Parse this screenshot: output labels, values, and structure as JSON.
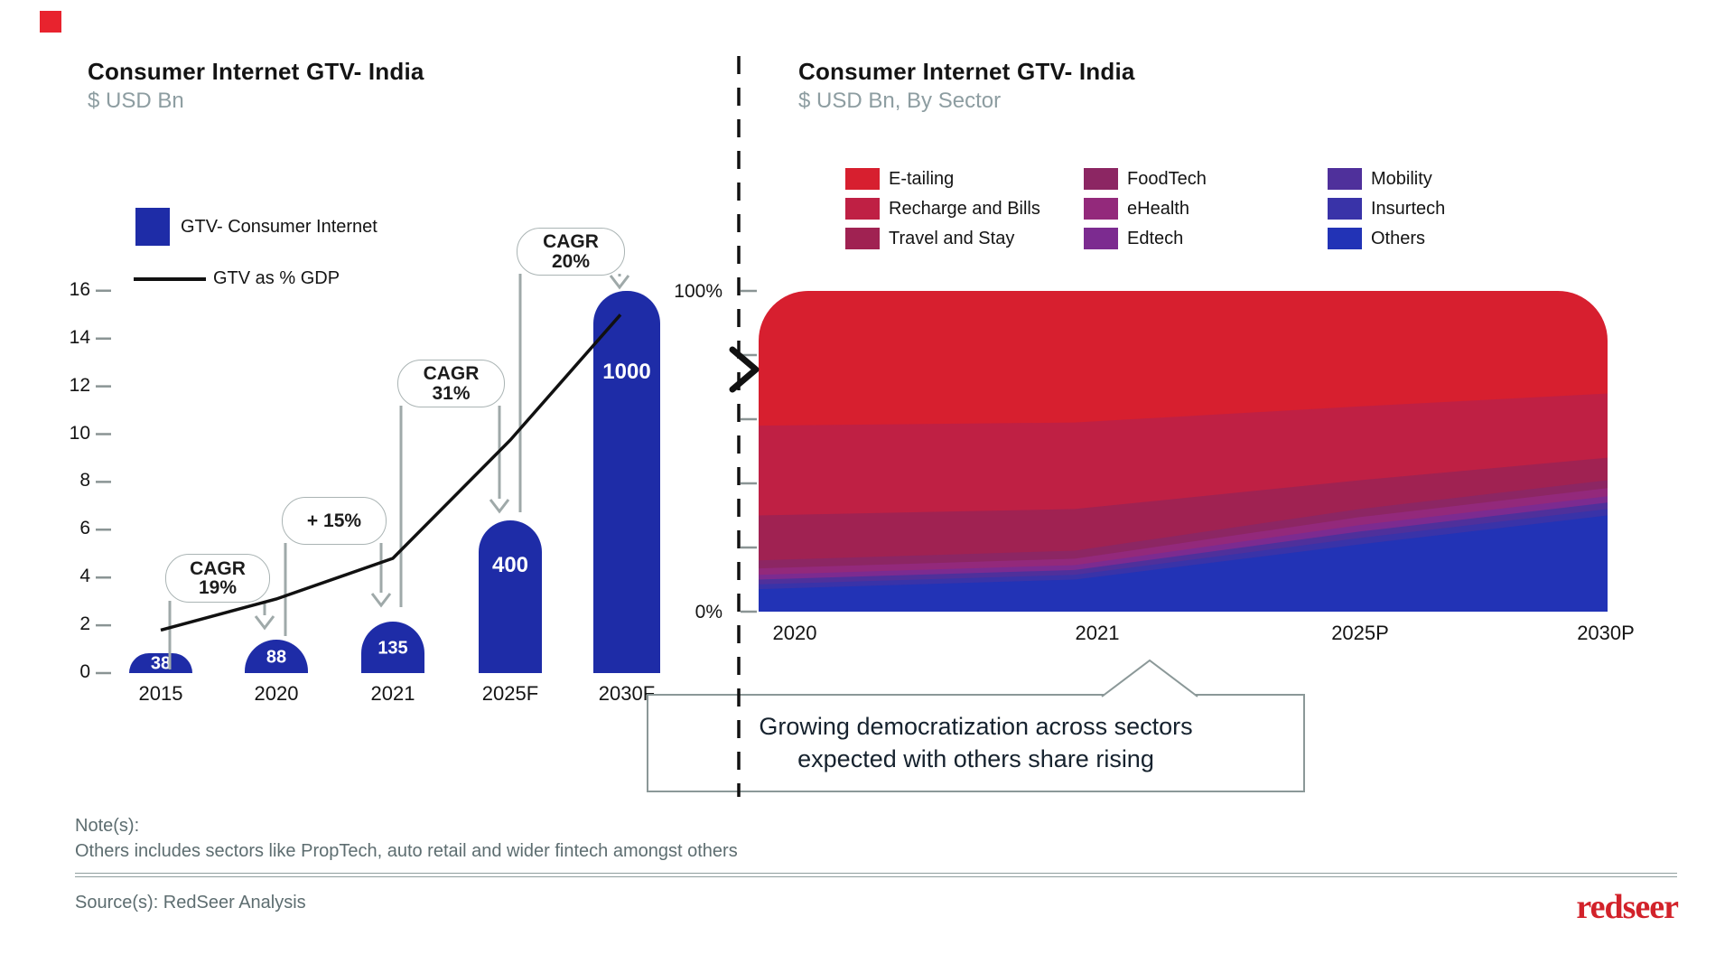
{
  "marker_color": "#E8232E",
  "chart_data": [
    {
      "type": "bar",
      "title": "Consumer Internet GTV- India",
      "subtitle": "$ USD Bn",
      "categories": [
        "2015",
        "2020",
        "2021",
        "2025F",
        "2030F"
      ],
      "series": [
        {
          "name": "GTV- Consumer Internet",
          "type": "bar",
          "values": [
            38,
            88,
            135,
            400,
            1000
          ],
          "color": "#1E2CA7"
        },
        {
          "name": "GTV as % GDP",
          "type": "line",
          "values": [
            1.8,
            3.1,
            4.8,
            9.75,
            15.0
          ],
          "color": "#111111"
        }
      ],
      "ylabel": "",
      "y_ticks": [
        0,
        2,
        4,
        6,
        8,
        10,
        12,
        14,
        16
      ],
      "ylim": [
        0,
        16
      ],
      "annotations": [
        {
          "lines": [
            "CAGR",
            "19%"
          ]
        },
        {
          "lines": [
            "+ 15%"
          ]
        },
        {
          "lines": [
            "CAGR",
            "31%"
          ]
        },
        {
          "lines": [
            "CAGR",
            "20%"
          ]
        }
      ]
    },
    {
      "type": "area",
      "title": "Consumer Internet GTV- India",
      "subtitle": "$ USD Bn, By Sector",
      "x_labels": [
        "2020",
        "2021",
        "2025P",
        "2030P"
      ],
      "y_top_label": "100%",
      "y_bottom_label": "0%",
      "stacking": "100pct",
      "series": [
        {
          "name": "E-tailing",
          "color": "#D71F2F",
          "values_pct": [
            42,
            41,
            36,
            32
          ]
        },
        {
          "name": "Recharge and Bills",
          "color": "#BF2044",
          "values_pct": [
            28,
            27,
            23,
            20
          ]
        },
        {
          "name": "Travel and Stay",
          "color": "#A02252",
          "values_pct": [
            14,
            13,
            9,
            7
          ]
        },
        {
          "name": "FoodTech",
          "color": "#8C2663",
          "values_pct": [
            2.5,
            2.5,
            2.5,
            2.5
          ]
        },
        {
          "name": "eHealth",
          "color": "#93297B",
          "values_pct": [
            2,
            2,
            2.5,
            2.5
          ]
        },
        {
          "name": "Edtech",
          "color": "#7C2B90",
          "values_pct": [
            1.5,
            1.5,
            2,
            2
          ]
        },
        {
          "name": "Mobility",
          "color": "#4F309B",
          "values_pct": [
            1.5,
            1.5,
            2,
            2
          ]
        },
        {
          "name": "Insurtech",
          "color": "#3933A8",
          "values_pct": [
            1.5,
            1.5,
            2,
            2
          ]
        },
        {
          "name": "Others",
          "color": "#2233B6",
          "values_pct": [
            7,
            10,
            21,
            30
          ]
        }
      ],
      "legend_columns": [
        [
          "E-tailing",
          "Recharge and Bills",
          "Travel and Stay"
        ],
        [
          "FoodTech",
          "eHealth",
          "Edtech"
        ],
        [
          "Mobility",
          "Insurtech",
          "Others"
        ]
      ],
      "legend_position": "top"
    }
  ],
  "callout": {
    "line1": "Growing democratization across sectors",
    "line2": "expected with others share rising"
  },
  "footer": {
    "note_label": "Note(s):",
    "note": "Others includes sectors like PropTech, auto retail and wider fintech amongst others",
    "source": "Source(s): RedSeer Analysis",
    "logo": "redseer"
  }
}
